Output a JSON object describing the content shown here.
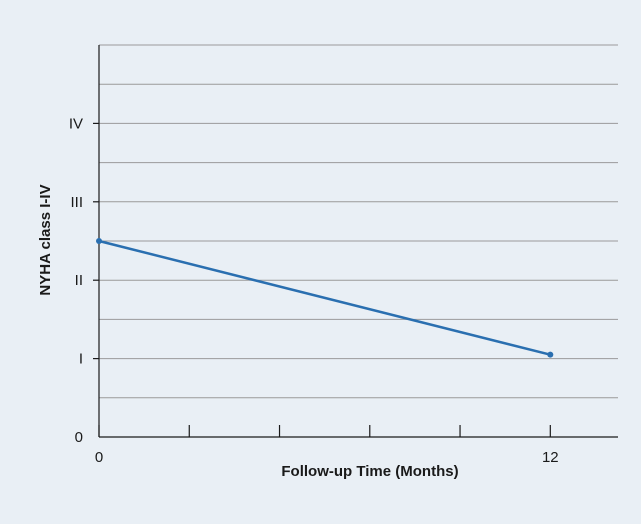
{
  "chart_data": {
    "type": "line",
    "title": "",
    "xlabel": "Follow-up Time (Months)",
    "ylabel": "NYHA class I-IV",
    "x_tick_labels": [
      {
        "value": 0,
        "label": "0"
      },
      {
        "value": 12,
        "label": "12"
      }
    ],
    "y_tick_labels": [
      {
        "value": 0,
        "label": "0"
      },
      {
        "value": 1,
        "label": "I"
      },
      {
        "value": 2,
        "label": "II"
      },
      {
        "value": 3,
        "label": "III"
      },
      {
        "value": 4,
        "label": "IV"
      }
    ],
    "xlim": [
      0,
      13.8
    ],
    "ylim": [
      0,
      5
    ],
    "x_minor_ticks": [
      0,
      2.4,
      4.8,
      7.2,
      9.6,
      12
    ],
    "y_gridlines": [
      0.5,
      1,
      1.5,
      2,
      2.5,
      3,
      3.5,
      4,
      4.5,
      5
    ],
    "grid": true,
    "series": [
      {
        "x": [
          0,
          12
        ],
        "y": [
          2.5,
          1.05
        ]
      }
    ],
    "colors": {
      "panel_background": "#e9eff5",
      "line": "#2a6fb0",
      "grid": "#9a9a9a",
      "axis": "#1a1a1a"
    }
  }
}
